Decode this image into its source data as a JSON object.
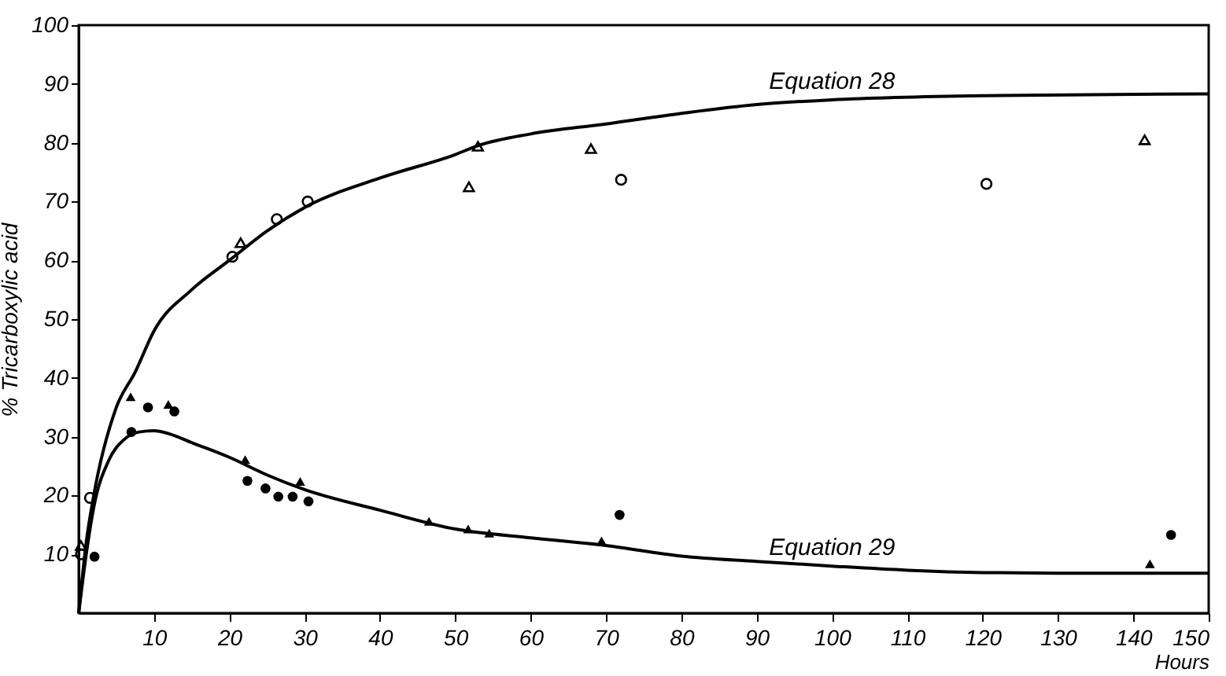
{
  "chart_data": {
    "type": "scatter",
    "xlabel": "Hours",
    "ylabel": "% Tricarboxylic acid",
    "xlim": [
      0,
      150
    ],
    "xticks": [
      10,
      20,
      30,
      40,
      50,
      60,
      70,
      80,
      90,
      100,
      110,
      120,
      130,
      140,
      150
    ],
    "ylim": [
      0,
      100
    ],
    "yticks": [
      10,
      20,
      30,
      40,
      50,
      60,
      70,
      80,
      90,
      100
    ],
    "grid": false,
    "series": [
      {
        "type": "line",
        "name": "Equation 28",
        "color": "#000000",
        "marker": "none",
        "line_style": "solid",
        "x": [
          0,
          1,
          2,
          5,
          7.5,
          10,
          15,
          20,
          25,
          30,
          40,
          50,
          53,
          60,
          70,
          80,
          90,
          100,
          120,
          150
        ],
        "values": [
          0,
          12,
          20,
          35,
          41,
          48,
          55,
          60,
          65,
          69,
          74,
          78,
          79.5,
          81.5,
          83.2,
          85,
          86.5,
          87.3,
          88,
          88.3
        ]
      },
      {
        "type": "line",
        "name": "Equation 29",
        "color": "#000000",
        "marker": "none",
        "line_style": "solid",
        "x": [
          0,
          1,
          2,
          4,
          6,
          8,
          10,
          12,
          15,
          20,
          25,
          30,
          40,
          50,
          60,
          70,
          80,
          90,
          100,
          110,
          120,
          130,
          140,
          150
        ],
        "values": [
          0,
          10,
          18,
          26,
          29.5,
          30.8,
          31,
          30.5,
          29,
          26.5,
          23.5,
          21,
          17.5,
          14.3,
          12.8,
          11.5,
          9.7,
          8.8,
          8,
          7.3,
          6.9,
          6.8,
          6.8,
          6.8
        ]
      },
      {
        "color": "#000000",
        "marker": "circle",
        "x": [
          0.3,
          1.5,
          20.4,
          26.3,
          30.4,
          72,
          120.5
        ],
        "values": [
          10,
          19.6,
          60.6,
          67,
          70,
          73.7,
          73
        ]
      },
      {
        "color": "#000000",
        "marker": "triangle",
        "x": [
          0.3,
          21.5,
          51.8,
          53,
          68,
          141.5
        ],
        "values": [
          11.5,
          63,
          72.5,
          79.4,
          79,
          80.5
        ]
      },
      {
        "color": "#000000",
        "marker": "circle",
        "x": [
          2.1,
          7,
          9.2,
          12.7,
          22.4,
          24.8,
          26.5,
          28.4,
          30.5,
          71.8,
          145
        ],
        "values": [
          9.6,
          30.8,
          35,
          34.3,
          22.5,
          21.2,
          19.8,
          19.8,
          19,
          16.7,
          13.3
        ]
      },
      {
        "color": "#000000",
        "marker": "triangle",
        "x": [
          6.9,
          11.9,
          22.1,
          29.4,
          46.5,
          51.7,
          54.5,
          69.4,
          142.2
        ],
        "values": [
          36.8,
          35.5,
          26.1,
          22.4,
          15.6,
          14.3,
          13.6,
          12.3,
          8.4
        ]
      }
    ]
  }
}
